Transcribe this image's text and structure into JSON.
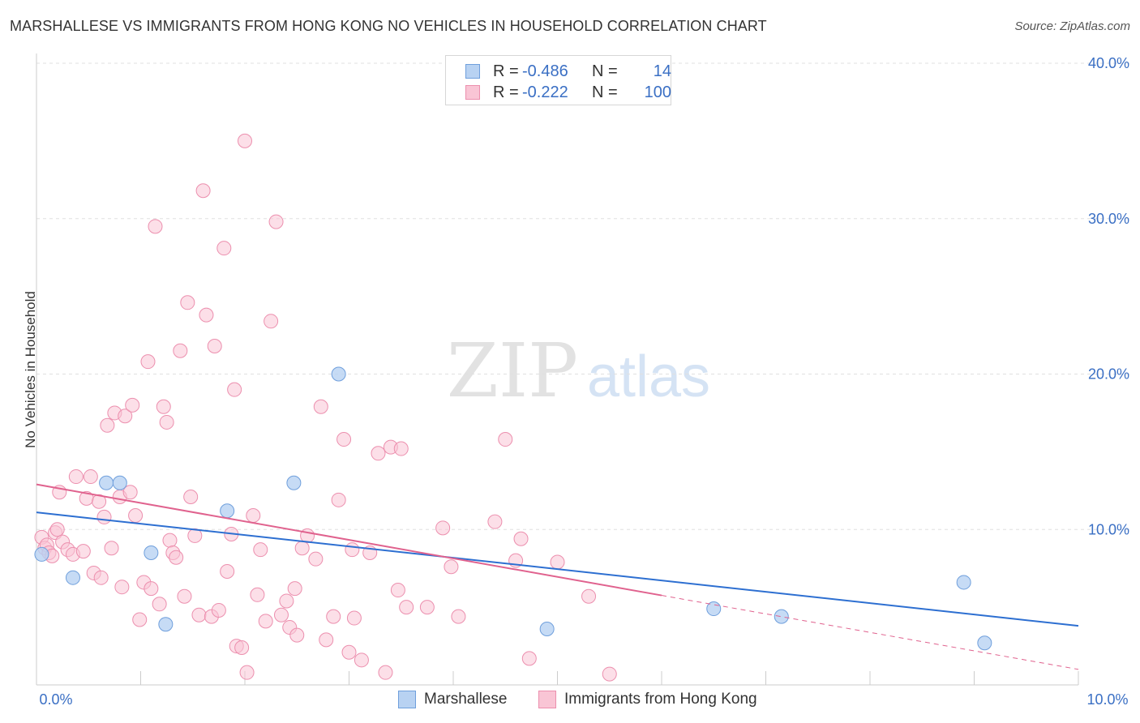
{
  "header": {
    "title": "MARSHALLESE VS IMMIGRANTS FROM HONG KONG NO VEHICLES IN HOUSEHOLD CORRELATION CHART",
    "source": "Source: ZipAtlas.com"
  },
  "watermark": {
    "zip": "ZIP",
    "atlas": "atlas"
  },
  "legend": {
    "rows": [
      {
        "r_label": "R =",
        "r_value": "-0.486",
        "n_label": "N =",
        "n_value": "14",
        "color": "#a9c8f0"
      },
      {
        "r_label": "R =",
        "r_value": "-0.222",
        "n_label": "N =",
        "n_value": "100",
        "color": "#f7b6ca"
      }
    ]
  },
  "bottom_legend": {
    "items": [
      {
        "label": "Marshallese",
        "color": "#a9c8f0"
      },
      {
        "label": "Immigrants from Hong Kong",
        "color": "#f7b6ca"
      }
    ]
  },
  "colors": {
    "blue_fill": "#b8d2f2",
    "blue_stroke": "#6f9fdc",
    "blue_line": "#2d6fd1",
    "pink_fill": "#f9c5d5",
    "pink_stroke": "#ec8fae",
    "pink_line": "#e0628e",
    "tick_text": "#3a6fc4"
  },
  "chart_data": {
    "type": "scatter",
    "title": "MARSHALLESE VS IMMIGRANTS FROM HONG KONG NO VEHICLES IN HOUSEHOLD CORRELATION CHART",
    "xlabel": "",
    "ylabel": "No Vehicles in Household",
    "xlim": [
      0,
      10
    ],
    "ylim": [
      0,
      40
    ],
    "x_tick_labels": [
      "0.0%",
      "10.0%"
    ],
    "y_ticks": [
      10,
      20,
      30,
      40
    ],
    "y_tick_labels": [
      "10.0%",
      "20.0%",
      "30.0%",
      "40.0%"
    ],
    "grid": true,
    "series": [
      {
        "name": "Marshallese",
        "r": -0.486,
        "n": 14,
        "trend": {
          "x": [
            0,
            10
          ],
          "y": [
            11.1,
            3.8
          ],
          "dashed_from": null
        },
        "points": [
          [
            0.05,
            8.4
          ],
          [
            0.35,
            6.9
          ],
          [
            0.67,
            13.0
          ],
          [
            0.8,
            13.0
          ],
          [
            1.1,
            8.5
          ],
          [
            1.24,
            3.9
          ],
          [
            1.83,
            11.2
          ],
          [
            2.47,
            13.0
          ],
          [
            2.9,
            20.0
          ],
          [
            4.9,
            3.6
          ],
          [
            6.5,
            4.9
          ],
          [
            7.15,
            4.4
          ],
          [
            8.9,
            6.6
          ],
          [
            9.1,
            2.7
          ]
        ]
      },
      {
        "name": "Immigrants from Hong Kong",
        "r": -0.222,
        "n": 100,
        "trend": {
          "x": [
            0,
            10
          ],
          "y": [
            12.9,
            1.0
          ],
          "dashed_from": 6.0
        },
        "points": [
          [
            0.05,
            9.5
          ],
          [
            0.08,
            8.8
          ],
          [
            0.1,
            9.0
          ],
          [
            0.12,
            8.5
          ],
          [
            0.15,
            8.3
          ],
          [
            0.18,
            9.8
          ],
          [
            0.2,
            10.0
          ],
          [
            0.22,
            12.4
          ],
          [
            0.25,
            9.2
          ],
          [
            0.3,
            8.7
          ],
          [
            0.35,
            8.4
          ],
          [
            0.38,
            13.4
          ],
          [
            0.45,
            8.6
          ],
          [
            0.48,
            12.0
          ],
          [
            0.52,
            13.4
          ],
          [
            0.55,
            7.2
          ],
          [
            0.6,
            11.8
          ],
          [
            0.62,
            6.9
          ],
          [
            0.65,
            10.8
          ],
          [
            0.68,
            16.7
          ],
          [
            0.72,
            8.8
          ],
          [
            0.75,
            17.5
          ],
          [
            0.8,
            12.1
          ],
          [
            0.82,
            6.3
          ],
          [
            0.85,
            17.3
          ],
          [
            0.9,
            12.4
          ],
          [
            0.92,
            18.0
          ],
          [
            0.95,
            10.9
          ],
          [
            0.99,
            4.2
          ],
          [
            1.03,
            6.6
          ],
          [
            1.07,
            20.8
          ],
          [
            1.1,
            6.2
          ],
          [
            1.14,
            29.5
          ],
          [
            1.18,
            5.2
          ],
          [
            1.22,
            17.9
          ],
          [
            1.25,
            16.9
          ],
          [
            1.28,
            9.3
          ],
          [
            1.31,
            8.5
          ],
          [
            1.34,
            8.2
          ],
          [
            1.38,
            21.5
          ],
          [
            1.42,
            5.7
          ],
          [
            1.45,
            24.6
          ],
          [
            1.48,
            12.1
          ],
          [
            1.52,
            9.6
          ],
          [
            1.56,
            4.5
          ],
          [
            1.6,
            31.8
          ],
          [
            1.63,
            23.8
          ],
          [
            1.68,
            4.4
          ],
          [
            1.71,
            21.8
          ],
          [
            1.75,
            4.8
          ],
          [
            1.8,
            28.1
          ],
          [
            1.83,
            7.3
          ],
          [
            1.87,
            9.7
          ],
          [
            1.9,
            19.0
          ],
          [
            1.92,
            2.5
          ],
          [
            1.97,
            2.4
          ],
          [
            2.0,
            35.0
          ],
          [
            2.02,
            0.8
          ],
          [
            2.08,
            10.9
          ],
          [
            2.12,
            5.8
          ],
          [
            2.15,
            8.7
          ],
          [
            2.2,
            4.1
          ],
          [
            2.25,
            23.4
          ],
          [
            2.3,
            29.8
          ],
          [
            2.35,
            4.5
          ],
          [
            2.4,
            5.4
          ],
          [
            2.43,
            3.7
          ],
          [
            2.48,
            6.2
          ],
          [
            2.5,
            3.2
          ],
          [
            2.55,
            8.8
          ],
          [
            2.6,
            9.6
          ],
          [
            2.68,
            8.1
          ],
          [
            2.73,
            17.9
          ],
          [
            2.78,
            2.9
          ],
          [
            2.85,
            4.4
          ],
          [
            2.9,
            11.9
          ],
          [
            2.95,
            15.8
          ],
          [
            3.0,
            2.1
          ],
          [
            3.03,
            8.7
          ],
          [
            3.05,
            4.3
          ],
          [
            3.12,
            1.6
          ],
          [
            3.2,
            8.5
          ],
          [
            3.28,
            14.9
          ],
          [
            3.35,
            0.8
          ],
          [
            3.4,
            15.3
          ],
          [
            3.47,
            6.1
          ],
          [
            3.5,
            15.2
          ],
          [
            3.55,
            5.0
          ],
          [
            3.75,
            5.0
          ],
          [
            3.9,
            10.1
          ],
          [
            3.98,
            7.6
          ],
          [
            4.05,
            4.4
          ],
          [
            4.4,
            10.5
          ],
          [
            4.5,
            15.8
          ],
          [
            4.6,
            8.0
          ],
          [
            4.65,
            9.4
          ],
          [
            4.73,
            1.7
          ],
          [
            5.0,
            7.9
          ],
          [
            5.3,
            5.7
          ],
          [
            5.5,
            0.7
          ]
        ]
      }
    ]
  }
}
